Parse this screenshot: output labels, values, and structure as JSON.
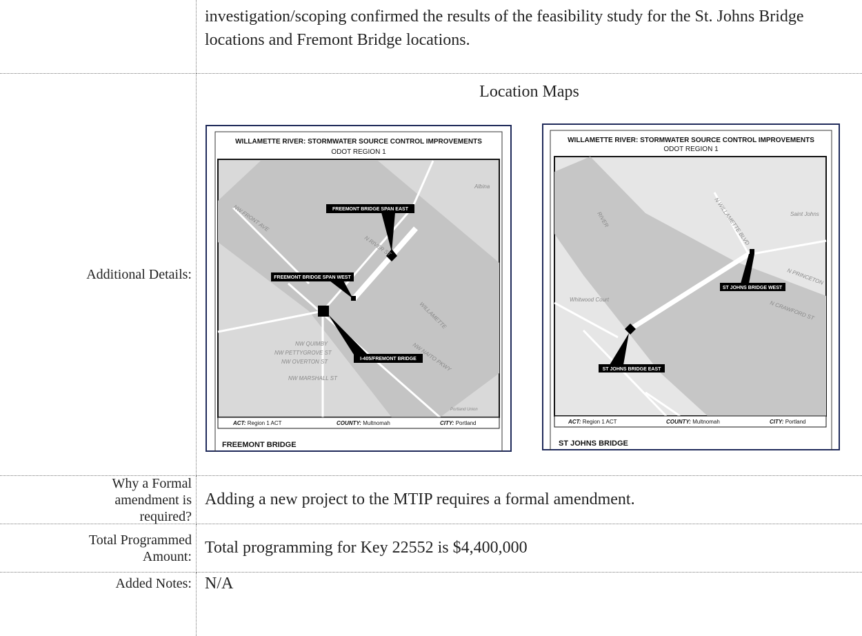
{
  "table": {
    "rows": [
      {
        "content": "investigation/scoping confirmed the results of the feasibility study for the St. Johns Bridge locations and Fremont Bridge locations."
      },
      {
        "label": "Additional Details:",
        "content": "Location Maps"
      },
      {
        "label": "Why a Formal amendment is required?",
        "content": "Adding a new project to the MTIP requires a formal amendment."
      },
      {
        "label": "Total Programmed Amount:",
        "content": "Total programming for Key 22552 is $4,400,000"
      },
      {
        "label": "Added Notes:",
        "content": "N/A"
      }
    ]
  },
  "maps": [
    {
      "title": "WILLAMETTE RIVER: STORMWATER SOURCE CONTROL IMPROVEMENTS",
      "region": "ODOT REGION 1",
      "pins": [
        "FREEMONT BRIDGE SPAN EAST",
        "FREEMONT BRIDGE SPAN WEST",
        "I-405/FREMONT BRIDGE"
      ],
      "places": [
        "NW FRONT AVE",
        "N RIVER ST",
        "WILLAMETTE",
        "NW NAITO PKWY",
        "NW QUIMBY",
        "NW PETTYGROVE ST",
        "NW OVERTON ST",
        "NW MARSHALL ST",
        "Albina",
        "Portland Union"
      ],
      "act_label": "ACT:",
      "act": "Region 1 ACT",
      "county_label": "COUNTY:",
      "county": "Multnomah",
      "city_label": "CITY:",
      "city": "Portland",
      "name": "FREEMONT BRIDGE"
    },
    {
      "title": "WILLAMETTE RIVER: STORMWATER SOURCE CONTROL IMPROVEMENTS",
      "region": "ODOT REGION 1",
      "pins": [
        "ST JOHNS BRIDGE WEST",
        "ST JOHNS BRIDGE EAST"
      ],
      "places": [
        "RIVER",
        "Whitwood Court",
        "Saint Johns",
        "N CRAWFORD ST",
        "N PRINCETON",
        "N WILLAMETTE BLVD"
      ],
      "act_label": "ACT:",
      "act": "Region 1 ACT",
      "county_label": "COUNTY:",
      "county": "Multnomah",
      "city_label": "CITY:",
      "city": "Portland",
      "name": "ST JOHNS BRIDGE"
    }
  ]
}
